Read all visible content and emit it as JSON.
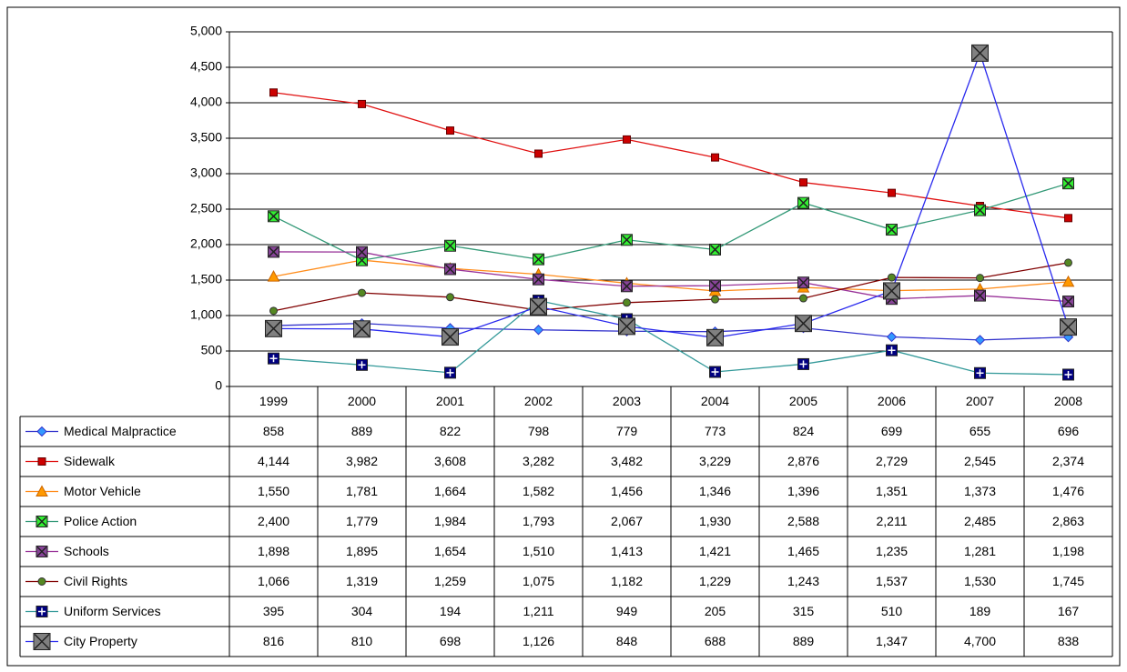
{
  "chart_data": {
    "type": "line",
    "categories": [
      "1999",
      "2000",
      "2001",
      "2002",
      "2003",
      "2004",
      "2005",
      "2006",
      "2007",
      "2008"
    ],
    "ylim": [
      0,
      5000
    ],
    "yticks": [
      0,
      500,
      {
        "value": 1000,
        "label": "1,000"
      },
      {
        "value": 1500,
        "label": "1,500"
      },
      {
        "value": 2000,
        "label": "2,000"
      },
      {
        "value": 2500,
        "label": "2,500"
      },
      {
        "value": 3000,
        "label": "3,000"
      },
      {
        "value": 3500,
        "label": "3,500"
      },
      {
        "value": 4000,
        "label": "4,000"
      },
      {
        "value": 4500,
        "label": "4,500"
      },
      {
        "value": 5000,
        "label": "5,000"
      }
    ],
    "grid": true,
    "series": [
      {
        "name": "Medical Malpractice",
        "color": "#3333cc",
        "marker": "diamond",
        "marker_color": "#3399ff",
        "values": [
          858,
          889,
          822,
          798,
          779,
          773,
          824,
          699,
          655,
          696
        ],
        "value_labels": [
          "858",
          "889",
          "822",
          "798",
          "779",
          "773",
          "824",
          "699",
          "655",
          "696"
        ]
      },
      {
        "name": "Sidewalk",
        "color": "#e01010",
        "marker": "square",
        "marker_color": "#cc0000",
        "values": [
          4144,
          3982,
          3608,
          3282,
          3482,
          3229,
          2876,
          2729,
          2545,
          2374
        ],
        "value_labels": [
          "4,144",
          "3,982",
          "3,608",
          "3,282",
          "3,482",
          "3,229",
          "2,876",
          "2,729",
          "2,545",
          "2,374"
        ]
      },
      {
        "name": "Motor Vehicle",
        "color": "#ff8c1a",
        "marker": "triangle",
        "marker_color": "#ff9900",
        "values": [
          1550,
          1781,
          1664,
          1582,
          1456,
          1346,
          1396,
          1351,
          1373,
          1476
        ],
        "value_labels": [
          "1,550",
          "1,781",
          "1,664",
          "1,582",
          "1,456",
          "1,346",
          "1,396",
          "1,351",
          "1,373",
          "1,476"
        ]
      },
      {
        "name": "Police Action",
        "color": "#339977",
        "marker": "square-x",
        "marker_color": "#33ee33",
        "values": [
          2400,
          1779,
          1984,
          1793,
          2067,
          1930,
          2588,
          2211,
          2485,
          2863
        ],
        "value_labels": [
          "2,400",
          "1,779",
          "1,984",
          "1,793",
          "2,067",
          "1,930",
          "2,588",
          "2,211",
          "2,485",
          "2,863"
        ]
      },
      {
        "name": "Schools",
        "color": "#993399",
        "marker": "square-x",
        "marker_color": "#884499",
        "values": [
          1898,
          1895,
          1654,
          1510,
          1413,
          1421,
          1465,
          1235,
          1281,
          1198
        ],
        "value_labels": [
          "1,898",
          "1,895",
          "1,654",
          "1,510",
          "1,413",
          "1,421",
          "1,465",
          "1,235",
          "1,281",
          "1,198"
        ]
      },
      {
        "name": "Civil Rights",
        "color": "#800000",
        "marker": "circle",
        "marker_color": "#558822",
        "values": [
          1066,
          1319,
          1259,
          1075,
          1182,
          1229,
          1243,
          1537,
          1530,
          1745
        ],
        "value_labels": [
          "1,066",
          "1,319",
          "1,259",
          "1,075",
          "1,182",
          "1,229",
          "1,243",
          "1,537",
          "1,530",
          "1,745"
        ]
      },
      {
        "name": "Uniform Services",
        "color": "#339999",
        "marker": "square-plus",
        "marker_color": "#000080",
        "values": [
          395,
          304,
          194,
          1211,
          949,
          205,
          315,
          510,
          189,
          167
        ],
        "value_labels": [
          "395",
          "304",
          "194",
          "1,211",
          "949",
          "205",
          "315",
          "510",
          "189",
          "167"
        ]
      },
      {
        "name": "City Property",
        "color": "#2a2aee",
        "marker": "big-x",
        "marker_color": "#808080",
        "values": [
          816,
          810,
          698,
          1126,
          848,
          688,
          889,
          1347,
          4700,
          838
        ],
        "value_labels": [
          "816",
          "810",
          "698",
          "1,126",
          "848",
          "688",
          "889",
          "1,347",
          "4,700",
          "838"
        ]
      }
    ]
  }
}
